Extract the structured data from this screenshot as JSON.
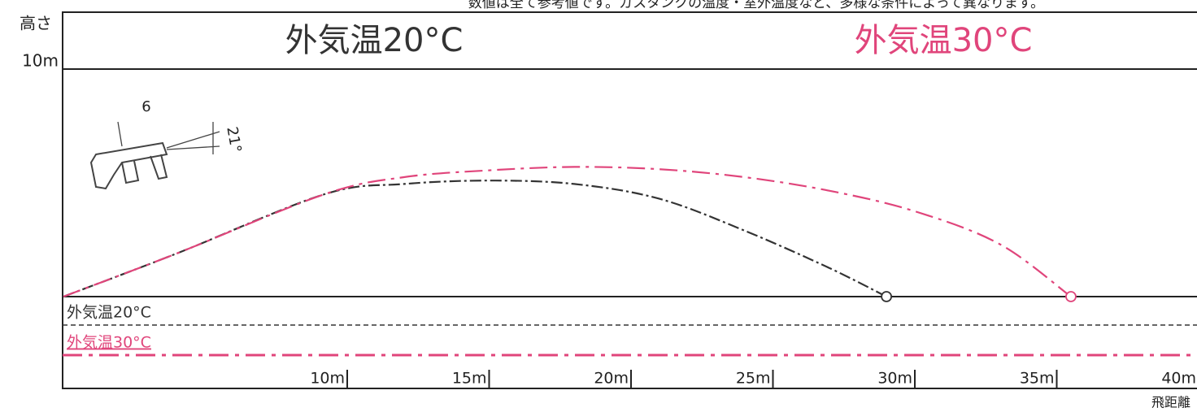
{
  "chart_data": {
    "type": "line",
    "note": "数値は全て参考値です。ガスタンクの温度・室外温度など、多様な条件によって異なります。",
    "y_label": "高さ",
    "x_label": "飛距離",
    "gun_label": "6",
    "angle_label": "21°",
    "xlim": [
      0,
      40
    ],
    "xticks": [
      {
        "value": 10,
        "label": "10m"
      },
      {
        "value": 15,
        "label": "15m"
      },
      {
        "value": 20,
        "label": "20m"
      },
      {
        "value": 25,
        "label": "25m"
      },
      {
        "value": 30,
        "label": "30m"
      },
      {
        "value": 35,
        "label": "35m"
      },
      {
        "value": 40,
        "label": "40m"
      }
    ],
    "ylim": [
      0,
      10
    ],
    "yticks": [
      {
        "value": 10,
        "label": "10m"
      }
    ],
    "series": [
      {
        "name": "外気温20°C",
        "color": "#333333",
        "x": [
          0,
          4,
          9.2,
          12,
          15,
          18,
          21,
          24,
          27,
          29
        ],
        "values": [
          0,
          1.9,
          4.5,
          4.95,
          5.1,
          4.95,
          4.3,
          2.9,
          1.25,
          0
        ]
      },
      {
        "name": "外気温30°C",
        "color": "#e0457b",
        "x": [
          0,
          4,
          9.2,
          12,
          15,
          18,
          21,
          24,
          27,
          30,
          33,
          35.5
        ],
        "values": [
          0,
          1.9,
          4.5,
          5.25,
          5.55,
          5.7,
          5.6,
          5.25,
          4.65,
          3.75,
          2.3,
          0
        ]
      }
    ]
  }
}
